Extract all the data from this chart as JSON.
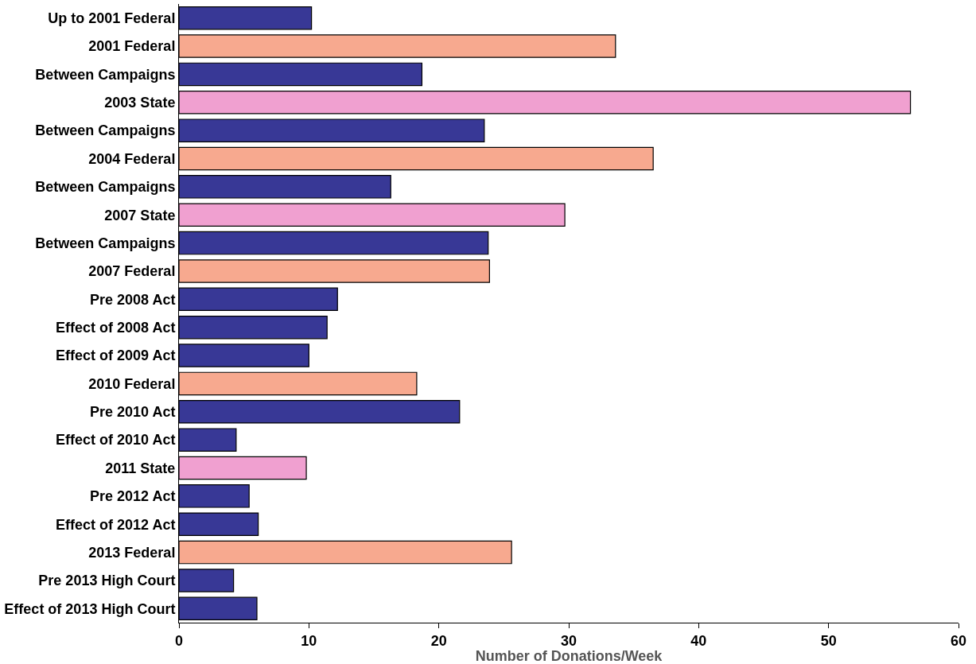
{
  "chart_data": {
    "type": "bar",
    "orientation": "horizontal",
    "xlabel": "Number of Donations/Week",
    "categories": [
      "Up to 2001 Federal",
      "2001 Federal",
      "Between Campaigns",
      "2003 State",
      "Between Campaigns",
      "2004 Federal",
      "Between Campaigns",
      "2007 State",
      "Between Campaigns",
      "2007 Federal",
      "Pre 2008 Act",
      "Effect of 2008 Act",
      "Effect of 2009 Act",
      "2010 Federal",
      "Pre 2010 Act",
      "Effect of 2010 Act",
      "2011 State",
      "Pre 2012 Act",
      "Effect of 2012 Act",
      "2013 Federal",
      "Pre 2013 High Court",
      "Effect of 2013 High Court"
    ],
    "values": [
      10.2,
      33.6,
      18.7,
      56.3,
      23.5,
      36.5,
      16.3,
      29.7,
      23.8,
      23.9,
      12.2,
      11.4,
      10.0,
      18.3,
      21.6,
      4.4,
      9.8,
      5.4,
      6.1,
      25.6,
      4.2,
      6.0
    ],
    "colors": [
      "#383896",
      "#f7a98f",
      "#383896",
      "#f0a0d0",
      "#383896",
      "#f7a98f",
      "#383896",
      "#f0a0d0",
      "#383896",
      "#f7a98f",
      "#383896",
      "#383896",
      "#383896",
      "#f7a98f",
      "#383896",
      "#383896",
      "#f0a0d0",
      "#383896",
      "#383896",
      "#f7a98f",
      "#383896",
      "#383896"
    ],
    "xlim": [
      0,
      60
    ],
    "xticks": [
      0,
      10,
      20,
      30,
      40,
      50,
      60
    ],
    "legend": false
  }
}
